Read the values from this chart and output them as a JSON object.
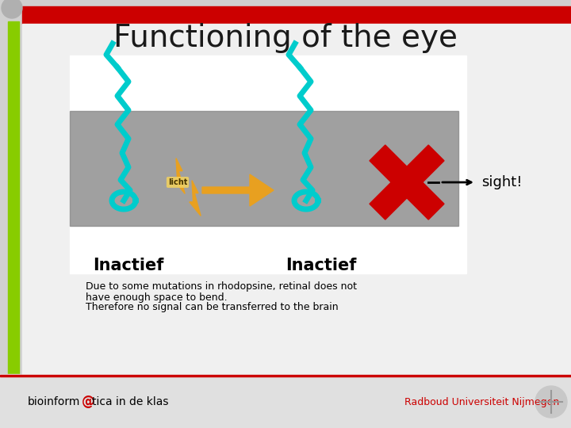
{
  "title": "Functioning of the eye",
  "title_fontsize": 28,
  "title_color": "#1a1a1a",
  "slide_bg": "#d0d0d0",
  "top_bar_color": "#cc0000",
  "left_bar_color": "#88cc00",
  "caption_line1": "Due to some mutations in rhodopsine, retinal does not",
  "caption_line2": "have enough space to bend.",
  "caption_line3": "Therefore no signal can be transferred to the brain",
  "caption_fontsize": 9,
  "inactief1_label": "Inactief",
  "inactief2_label": "Inactief",
  "sight_label": "sight!",
  "licht_label": "licht",
  "footer_uni": "Radboud Universiteit Nijmegen",
  "cross_color": "#cc0000",
  "light_arrow_color": "#e8a020",
  "molecule_color": "#00cccc",
  "gray_box_color": "#888888"
}
